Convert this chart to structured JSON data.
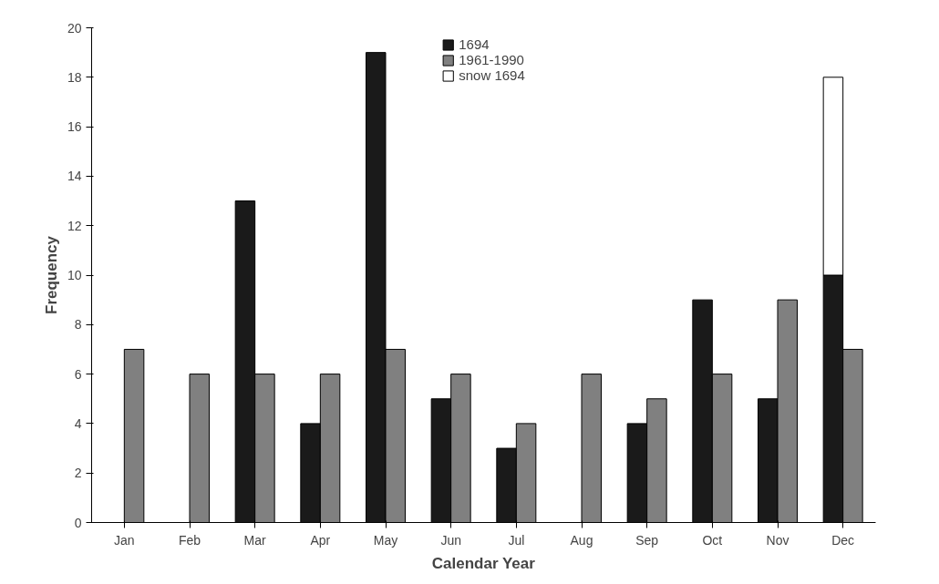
{
  "chart_data": {
    "type": "bar",
    "xlabel": "Calendar Year",
    "ylabel": "Frequency",
    "categories": [
      "Jan",
      "Feb",
      "Mar",
      "Apr",
      "May",
      "Jun",
      "Jul",
      "Aug",
      "Sep",
      "Oct",
      "Nov",
      "Dec"
    ],
    "series": [
      {
        "name": "1694",
        "color": "#1a1a1a",
        "values": [
          null,
          null,
          13,
          4,
          19,
          5,
          3,
          null,
          4,
          9,
          5,
          10
        ]
      },
      {
        "name": "1961-1990",
        "color": "#808080",
        "values": [
          7,
          6,
          6,
          6,
          7,
          6,
          4,
          6,
          5,
          6,
          9,
          7
        ]
      },
      {
        "name": "snow 1694",
        "color": "#ffffff",
        "base": [
          null,
          null,
          null,
          null,
          null,
          null,
          null,
          null,
          null,
          null,
          null,
          10
        ],
        "values": [
          null,
          null,
          null,
          null,
          null,
          null,
          null,
          null,
          null,
          null,
          null,
          8
        ]
      }
    ],
    "ylim": [
      0,
      20
    ],
    "yticks": [
      0,
      2,
      4,
      6,
      8,
      10,
      12,
      14,
      16,
      18,
      20
    ],
    "grid": false,
    "legend": "top"
  }
}
